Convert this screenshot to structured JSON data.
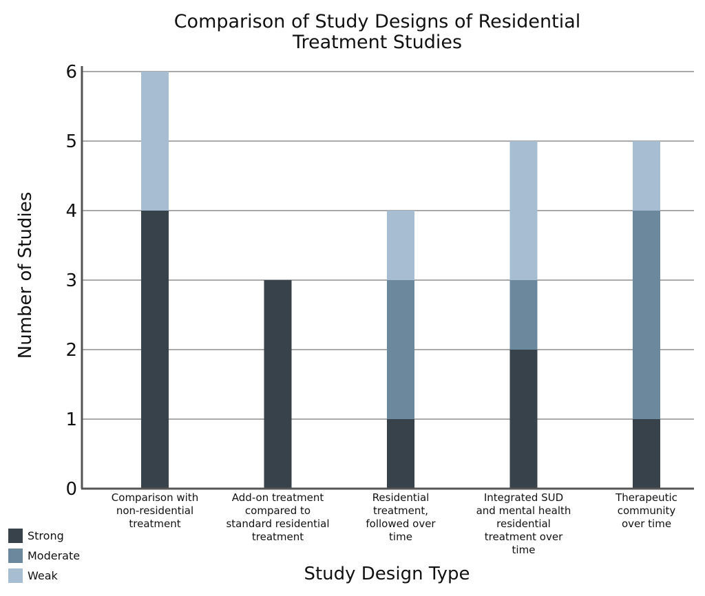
{
  "chart_data": {
    "type": "bar",
    "stacked": true,
    "title": [
      "Comparison of Study Designs of Residential",
      "Treatment Studies"
    ],
    "xlabel": "Study Design Type",
    "ylabel": "Number of Studies",
    "ylim": [
      0,
      6
    ],
    "yticks": [
      "0",
      "1",
      "2",
      "3",
      "4",
      "5",
      "6"
    ],
    "grid": true,
    "legend_position": "bottom-left",
    "categories": [
      [
        "Comparison with",
        "non-residential",
        "treatment"
      ],
      [
        "Add-on treatment",
        "compared to",
        "standard residential",
        "treatment"
      ],
      [
        "Residential",
        "treatment,",
        "followed over",
        "time"
      ],
      [
        "Integrated SUD",
        "and mental health",
        "residential",
        "treatment over",
        "time"
      ],
      [
        "Therapeutic",
        "community",
        "over time"
      ]
    ],
    "series": [
      {
        "name": "Strong",
        "color": "#37424b",
        "values": [
          4,
          3,
          1,
          2,
          1
        ]
      },
      {
        "name": "Moderate",
        "color": "#6b889d",
        "values": [
          0,
          0,
          2,
          1,
          3
        ]
      },
      {
        "name": "Weak",
        "color": "#a6bdd2",
        "values": [
          2,
          0,
          1,
          2,
          1
        ]
      }
    ]
  }
}
